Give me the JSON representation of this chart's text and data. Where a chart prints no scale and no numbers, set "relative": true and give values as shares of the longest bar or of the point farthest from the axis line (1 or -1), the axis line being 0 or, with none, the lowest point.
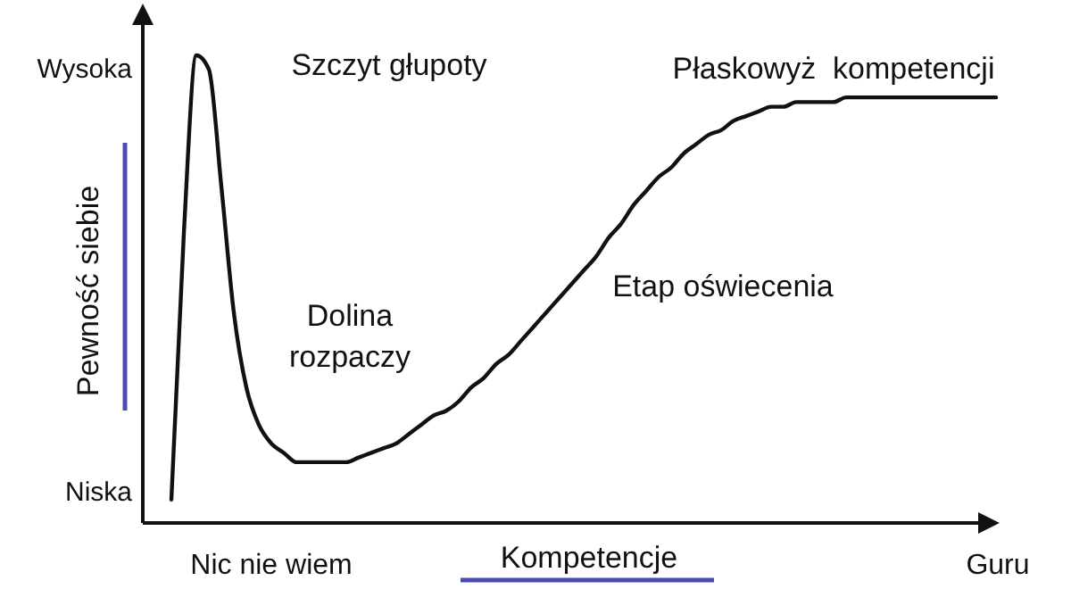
{
  "chart_data": {
    "type": "line",
    "relative": true,
    "xlabel": "Kompetencje",
    "ylabel": "Pewność siebie",
    "categories": [
      null,
      null,
      null,
      null,
      null,
      null,
      null,
      null,
      null,
      null,
      null,
      null,
      null,
      null,
      null,
      null,
      null,
      null,
      null,
      null,
      null,
      null,
      null,
      null,
      null,
      null,
      null,
      null,
      null,
      null,
      null,
      null,
      null,
      null,
      null,
      null,
      null,
      null,
      null,
      null,
      null,
      null,
      null,
      null,
      null,
      null,
      null,
      null,
      null,
      null,
      null,
      null,
      null,
      null,
      null,
      null,
      null,
      null,
      null,
      null,
      null,
      null,
      null,
      null,
      null,
      null,
      null
    ],
    "series": [
      {
        "color": "#111111",
        "values": [
          0.05,
          0.62,
          1,
          0.97,
          0.72,
          0.45,
          0.29,
          0.21,
          0.17,
          0.15,
          0.13,
          0.13,
          0.13,
          0.13,
          0.13,
          0.14,
          0.15,
          0.16,
          0.17,
          0.19,
          0.21,
          0.23,
          0.24,
          0.26,
          0.29,
          0.31,
          0.34,
          0.36,
          0.39,
          0.42,
          0.45,
          0.48,
          0.51,
          0.54,
          0.57,
          0.61,
          0.64,
          0.68,
          0.71,
          0.74,
          0.76,
          0.79,
          0.81,
          0.83,
          0.84,
          0.86,
          0.87,
          0.88,
          0.89,
          0.89,
          0.9,
          0.9,
          0.9,
          0.9,
          0.91,
          0.91,
          0.91,
          0.91,
          0.91,
          0.91,
          0.91,
          0.91,
          0.91,
          0.91,
          0.91,
          0.91,
          0.91
        ]
      }
    ],
    "annotations": [
      "Wysoka",
      "Niska",
      "Nic nie wiem",
      "Guru",
      "Szczyt głupoty",
      "Dolina\nrozpaczy",
      "Etap oświecenia",
      "Płaskowyż  kompetencji"
    ],
    "marker": "none",
    "line_style": "solid"
  }
}
